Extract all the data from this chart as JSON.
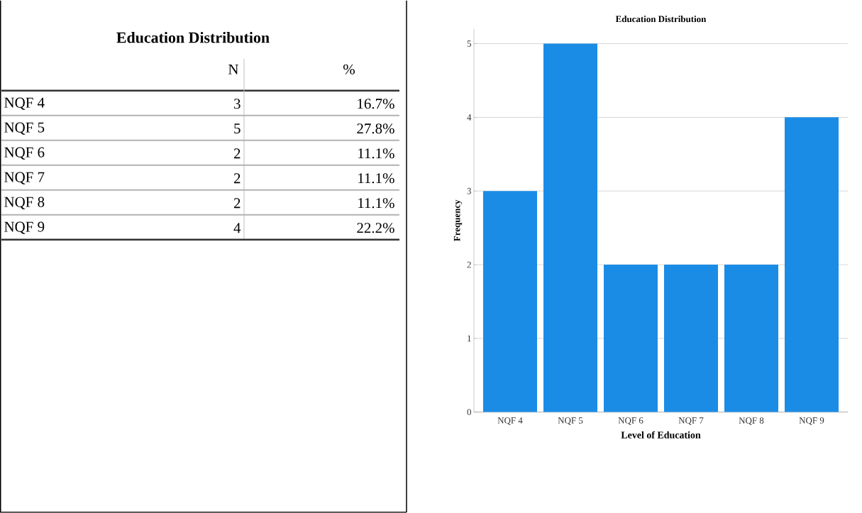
{
  "chart_data": [
    {
      "type": "other",
      "title": "Education Distribution",
      "categories": [
        "NQF 4",
        "NQF 5",
        "NQF 6",
        "NQF 7",
        "NQF 8",
        "NQF 9"
      ],
      "data_labels": true,
      "series": [
        {
          "name": "N",
          "values": [
            3,
            5,
            2,
            2,
            2,
            4
          ]
        },
        {
          "name": "%",
          "values": [
            16.7,
            27.8,
            11.1,
            11.1,
            11.1,
            22.2
          ]
        }
      ]
    },
    {
      "type": "bar",
      "title": "Education Distribution",
      "xlabel": "Level of Education",
      "ylabel": "Frequency",
      "categories": [
        "NQF 4",
        "NQF 5",
        "NQF 6",
        "NQF 7",
        "NQF 8",
        "NQF 9"
      ],
      "values": [
        3,
        5,
        2,
        2,
        2,
        4
      ],
      "color": "#1a8ce6",
      "ylim": [
        0,
        5.2
      ],
      "yticks": [
        0,
        1,
        2,
        3,
        4,
        5
      ],
      "grid": "y"
    }
  ]
}
